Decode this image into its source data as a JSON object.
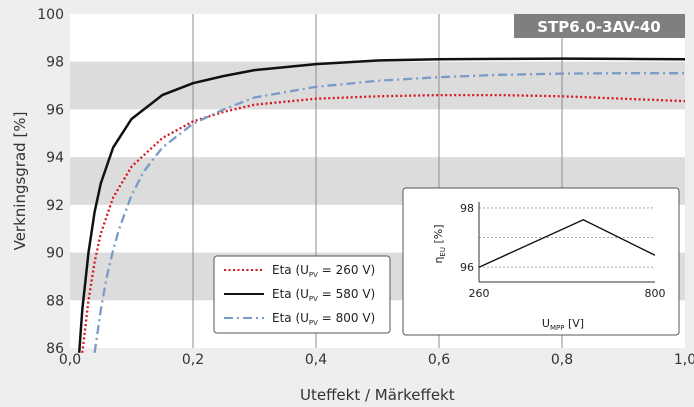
{
  "chart_data": {
    "type": "line",
    "badge": "STP6.0-3AV-40",
    "xlabel": "Uteffekt / Märkeffekt",
    "ylabel": "Verkningsgrad [%]",
    "xlim": [
      0,
      1.0
    ],
    "ylim": [
      86,
      100
    ],
    "x_ticks": [
      "0,0",
      "0,2",
      "0,4",
      "0,6",
      "0,8",
      "1,0"
    ],
    "y_ticks": [
      "86",
      "88",
      "90",
      "92",
      "94",
      "96",
      "98",
      "100"
    ],
    "bands": [
      [
        88,
        90
      ],
      [
        92,
        94
      ],
      [
        96,
        98
      ]
    ],
    "series": [
      {
        "legend": "Eta (U",
        "sub": "PV",
        "value_text": " = 260 V)",
        "color": "#d9141e",
        "style": "dotted",
        "x": [
          0.02,
          0.03,
          0.04,
          0.05,
          0.07,
          0.1,
          0.15,
          0.2,
          0.25,
          0.3,
          0.4,
          0.5,
          0.6,
          0.7,
          0.8,
          0.9,
          1.0
        ],
        "y": [
          85.8,
          88.0,
          89.6,
          90.8,
          92.3,
          93.6,
          94.8,
          95.5,
          95.9,
          96.2,
          96.45,
          96.55,
          96.6,
          96.6,
          96.55,
          96.45,
          96.35
        ]
      },
      {
        "legend": "Eta (U",
        "sub": "PV",
        "value_text": " = 580 V)",
        "color": "#111111",
        "style": "solid",
        "x": [
          0.015,
          0.02,
          0.03,
          0.04,
          0.05,
          0.07,
          0.1,
          0.15,
          0.2,
          0.25,
          0.3,
          0.4,
          0.5,
          0.6,
          0.7,
          0.8,
          0.9,
          1.0
        ],
        "y": [
          85.8,
          87.6,
          90.0,
          91.7,
          92.9,
          94.4,
          95.6,
          96.6,
          97.1,
          97.4,
          97.65,
          97.9,
          98.05,
          98.1,
          98.12,
          98.13,
          98.12,
          98.1
        ]
      },
      {
        "legend": "Eta (U",
        "sub": "PV",
        "value_text": " = 800 V)",
        "color": "#7a9ac8",
        "style": "dashdot",
        "x": [
          0.04,
          0.05,
          0.06,
          0.07,
          0.08,
          0.1,
          0.12,
          0.15,
          0.2,
          0.25,
          0.3,
          0.4,
          0.5,
          0.6,
          0.7,
          0.8,
          0.9,
          1.0
        ],
        "y": [
          85.8,
          87.6,
          89.0,
          90.1,
          91.0,
          92.4,
          93.4,
          94.4,
          95.4,
          96.0,
          96.5,
          96.95,
          97.2,
          97.35,
          97.45,
          97.5,
          97.52,
          97.52
        ]
      }
    ],
    "inset": {
      "ylabel": "η",
      "ylabel_sub": "EU",
      "ylabel_unit": " [%]",
      "xlabel": "U",
      "xlabel_sub": "MPP",
      "xlabel_unit": " [V]",
      "x_ticks": [
        "260",
        "800"
      ],
      "y_ticks": [
        "98",
        "96"
      ],
      "xlim": [
        260,
        800
      ],
      "ylim": [
        95.5,
        98.2
      ],
      "x": [
        260,
        580,
        800
      ],
      "y": [
        96.0,
        97.6,
        96.4
      ],
      "color": "#111111"
    }
  }
}
